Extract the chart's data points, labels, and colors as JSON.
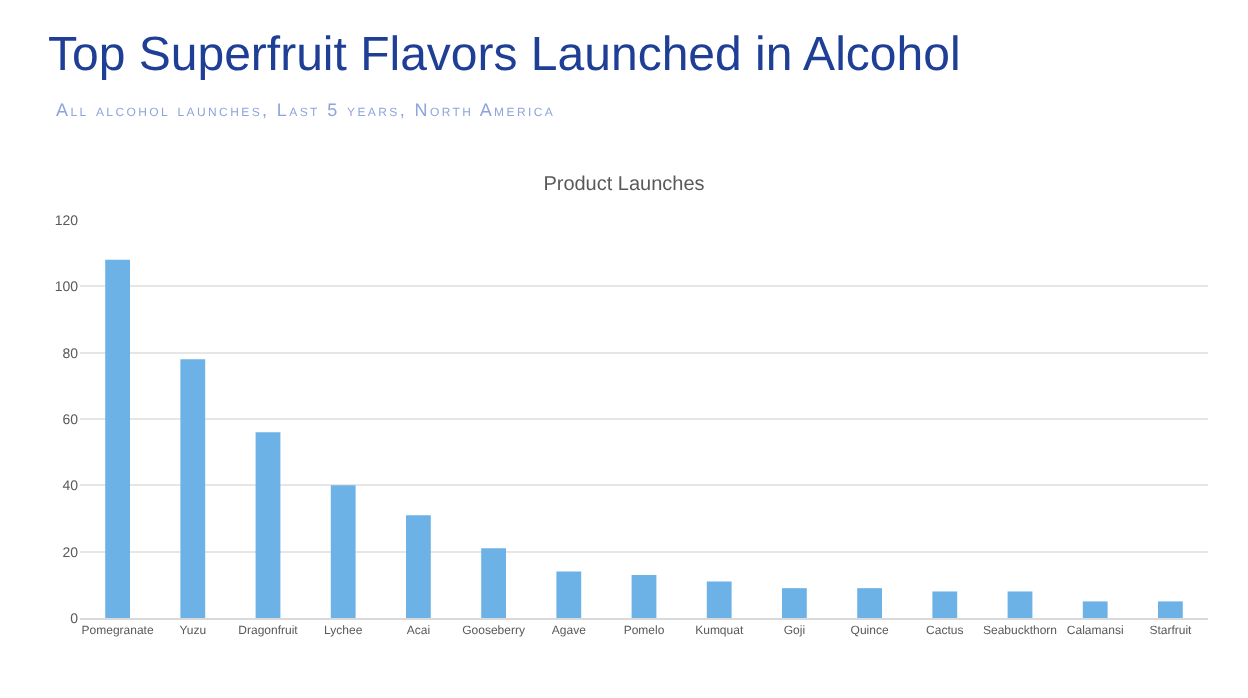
{
  "chart_data": {
    "type": "bar",
    "title": "Top Superfruit Flavors Launched in Alcohol",
    "subtitle": "All alcohol launches, Last 5 years, North America",
    "ylabel": "Product Launches",
    "categories": [
      "Pomegranate",
      "Yuzu",
      "Dragonfruit",
      "Lychee",
      "Acai",
      "Gooseberry",
      "Agave",
      "Pomelo",
      "Kumquat",
      "Goji",
      "Quince",
      "Cactus",
      "Seabuckthorn",
      "Calamansi",
      "Starfruit"
    ],
    "values": [
      108,
      78,
      56,
      40,
      31,
      21,
      14,
      13,
      11,
      9,
      9,
      8,
      8,
      5,
      5
    ],
    "color": "#6cb2e6",
    "ylim": [
      0,
      120
    ],
    "yticks": [
      0,
      20,
      40,
      60,
      80,
      100,
      120
    ],
    "grid": "y",
    "legend": false
  }
}
